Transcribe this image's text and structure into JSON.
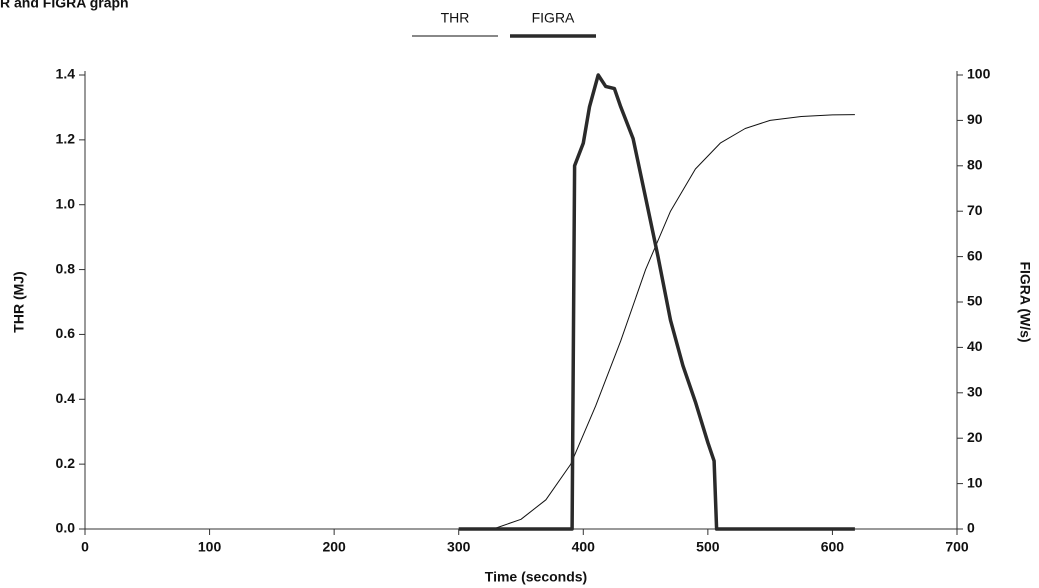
{
  "chart_data": {
    "type": "line",
    "title": "R and FIGRA graph",
    "x_label": "Time (seconds)",
    "y_label": "THR (MJ)",
    "y2_label": "FIGRA (W/s)",
    "xlim": [
      0,
      700
    ],
    "xticks": [
      0,
      100,
      200,
      300,
      400,
      500,
      600,
      700
    ],
    "ylim": [
      0,
      1.4
    ],
    "yticks": [
      {
        "value": 0,
        "label": "0.0"
      },
      0.2,
      0.4,
      0.6,
      0.8,
      {
        "value": 1,
        "label": "1.0"
      },
      1.2,
      1.4
    ],
    "y2lim": [
      0,
      100
    ],
    "y2ticks": [
      0,
      10,
      20,
      30,
      40,
      50,
      60,
      70,
      80,
      90,
      100
    ],
    "grid": false,
    "legend": "top",
    "series": [
      {
        "name": "THR",
        "color": "#111111",
        "width": 1,
        "x": [
          300,
          330,
          350,
          370,
          390,
          410,
          430,
          450,
          470,
          490,
          510,
          530,
          550,
          575,
          600,
          618
        ],
        "values": [
          0,
          0.003,
          0.03,
          0.09,
          0.2,
          0.38,
          0.58,
          0.8,
          0.98,
          1.11,
          1.19,
          1.235,
          1.26,
          1.272,
          1.277,
          1.278
        ]
      },
      {
        "name": "FIGRA",
        "color": "#2a2a2a",
        "width": 3.5,
        "axis": "y2",
        "x": [
          300,
          391,
          393,
          400,
          405,
          412,
          418,
          425,
          430,
          440,
          450,
          460,
          470,
          480,
          490,
          500,
          505,
          507,
          618
        ],
        "values": [
          0,
          0,
          80,
          85,
          93,
          100,
          97.5,
          97,
          93,
          86,
          73,
          60,
          46,
          36,
          28,
          19,
          15,
          0,
          0
        ]
      }
    ]
  }
}
